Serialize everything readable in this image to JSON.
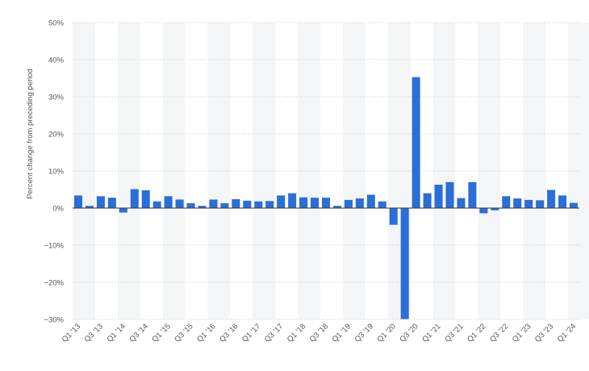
{
  "chart_data": {
    "type": "bar",
    "ylabel": "Percent change from preceding period",
    "ylim": [
      -30,
      50
    ],
    "yticks": [
      50,
      40,
      30,
      20,
      10,
      0,
      -10,
      -20,
      -30
    ],
    "ytick_labels": [
      "50%",
      "40%",
      "30%",
      "20%",
      "10%",
      "0%",
      "−10%",
      "−20%",
      "−30%"
    ],
    "grid": true,
    "bar_color": "#2a6ed8",
    "categories": [
      "Q1 '13",
      "Q2 '13",
      "Q3 '13",
      "Q4 '13",
      "Q1 '14",
      "Q2 '14",
      "Q3 '14",
      "Q4 '14",
      "Q1 '15",
      "Q2 '15",
      "Q3 '15",
      "Q4 '15",
      "Q1 '16",
      "Q2 '16",
      "Q3 '16",
      "Q4 '16",
      "Q1 '17",
      "Q2 '17",
      "Q3 '17",
      "Q4 '17",
      "Q1 '18",
      "Q2 '18",
      "Q3 '18",
      "Q4 '18",
      "Q1 '19",
      "Q2 '19",
      "Q3 '19",
      "Q4 '19",
      "Q1 '20",
      "Q2 '20",
      "Q3 '20",
      "Q4 '20",
      "Q1 '21",
      "Q2 '21",
      "Q3 '21",
      "Q4 '21",
      "Q1 '22",
      "Q2 '22",
      "Q3 '22",
      "Q4 '22",
      "Q1 '23",
      "Q2 '23",
      "Q3 '23",
      "Q4 '23",
      "Q1 '24"
    ],
    "visible_x_labels": [
      "Q1 '13",
      "Q3 '13",
      "Q1 '14",
      "Q3 '14",
      "Q1 '15",
      "Q3 '15",
      "Q1 '16",
      "Q3 '16",
      "Q1 '17",
      "Q3 '17",
      "Q1 '18",
      "Q3 '18",
      "Q1 '19",
      "Q3 '19",
      "Q1 '20",
      "Q3 '20",
      "Q1 '21",
      "Q3 '21",
      "Q1 '22",
      "Q3 '22",
      "Q1 '23",
      "Q3 '23",
      "Q1 '24"
    ],
    "values": [
      3.4,
      0.6,
      3.2,
      2.8,
      -1.2,
      5.1,
      4.8,
      1.8,
      3.2,
      2.3,
      1.3,
      0.6,
      2.3,
      1.3,
      2.4,
      2.0,
      1.8,
      1.9,
      3.4,
      4.0,
      2.9,
      2.8,
      2.8,
      0.6,
      2.2,
      2.6,
      3.6,
      1.8,
      -4.5,
      -29.9,
      35.3,
      4.0,
      6.3,
      7.0,
      2.7,
      7.0,
      -1.4,
      -0.6,
      3.2,
      2.6,
      2.2,
      2.1,
      4.9,
      3.4,
      1.4
    ]
  }
}
